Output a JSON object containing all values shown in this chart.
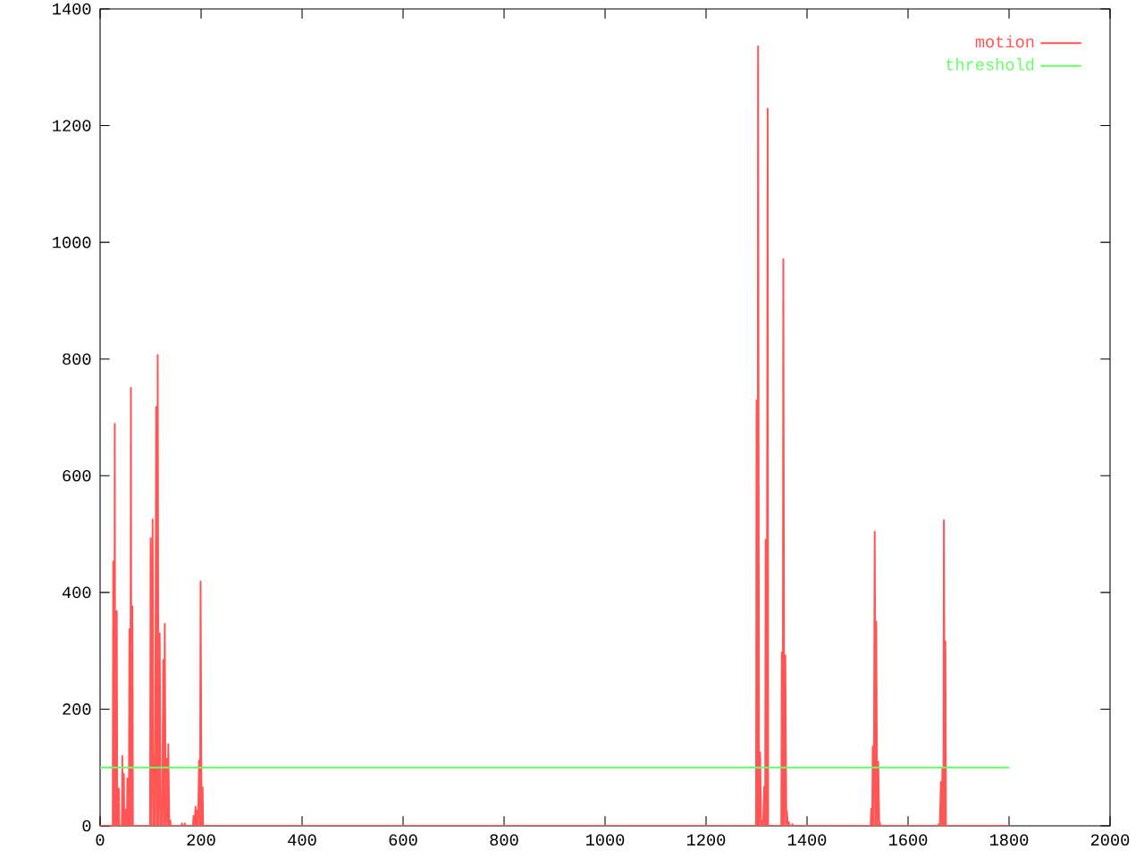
{
  "chart_data": {
    "type": "line",
    "xlim": [
      0,
      2000
    ],
    "ylim": [
      0,
      1400
    ],
    "xticks": [
      0,
      200,
      400,
      600,
      800,
      1000,
      1200,
      1400,
      1600,
      1800,
      2000
    ],
    "yticks": [
      0,
      200,
      400,
      600,
      800,
      1000,
      1200,
      1400
    ],
    "legend": "top right",
    "series": [
      {
        "name": "motion",
        "color": "#ff5555",
        "x": [
          0,
          25,
          26,
          27,
          28,
          29,
          30,
          32,
          33,
          34,
          36,
          37,
          38,
          43,
          44,
          45,
          46,
          47,
          48,
          50,
          51,
          52,
          53,
          54,
          55,
          57,
          58,
          59,
          60,
          61,
          62,
          63,
          64,
          65,
          99,
          100,
          102,
          104,
          106,
          107,
          109,
          111,
          113,
          114,
          116,
          118,
          120,
          121,
          123,
          125,
          127,
          128,
          130,
          132,
          134,
          135,
          137,
          139,
          140,
          161,
          162,
          163,
          167,
          168,
          169,
          184,
          185,
          187,
          189,
          191,
          192,
          194,
          196,
          198,
          199,
          201,
          203,
          204,
          1299,
          1300,
          1302,
          1303,
          1305,
          1307,
          1309,
          1311,
          1313,
          1315,
          1317,
          1318,
          1320,
          1322,
          1323,
          1349,
          1350,
          1352,
          1353,
          1355,
          1357,
          1359,
          1360,
          1362,
          1364,
          1365,
          1370,
          1371,
          1372,
          1526,
          1527,
          1529,
          1530,
          1532,
          1534,
          1536,
          1537,
          1539,
          1541,
          1543,
          1544,
          1545,
          1660,
          1661,
          1663,
          1665,
          1667,
          1668,
          1670,
          1671,
          1673,
          1674,
          1675,
          1800
        ],
        "values": [
          0,
          0,
          453,
          0,
          0,
          689,
          0,
          0,
          368,
          0,
          0,
          64,
          0,
          0,
          120,
          0,
          0,
          89,
          0,
          0,
          28,
          0,
          0,
          81,
          0,
          0,
          337,
          0,
          0,
          751,
          0,
          0,
          376,
          0,
          0,
          493,
          0,
          525,
          0,
          117,
          0,
          718,
          0,
          807,
          0,
          330,
          0,
          30,
          0,
          284,
          0,
          346,
          0,
          115,
          0,
          140,
          0,
          9,
          0,
          0,
          4,
          0,
          0,
          4,
          0,
          0,
          17,
          0,
          33,
          0,
          26,
          0,
          112,
          0,
          419,
          0,
          66,
          0,
          0,
          729,
          0,
          1336,
          0,
          126,
          0,
          9,
          0,
          67,
          0,
          490,
          0,
          1229,
          0,
          0,
          297,
          0,
          971,
          0,
          292,
          0,
          25,
          0,
          6,
          0,
          0,
          3,
          0,
          0,
          29,
          0,
          136,
          0,
          504,
          0,
          350,
          0,
          110,
          0,
          6,
          0,
          0,
          3,
          0,
          75,
          0,
          100,
          0,
          524,
          0,
          316,
          0,
          0
        ]
      },
      {
        "name": "threshold",
        "color": "#66ff66",
        "x": [
          0,
          1800
        ],
        "values": [
          100,
          100
        ]
      }
    ]
  }
}
